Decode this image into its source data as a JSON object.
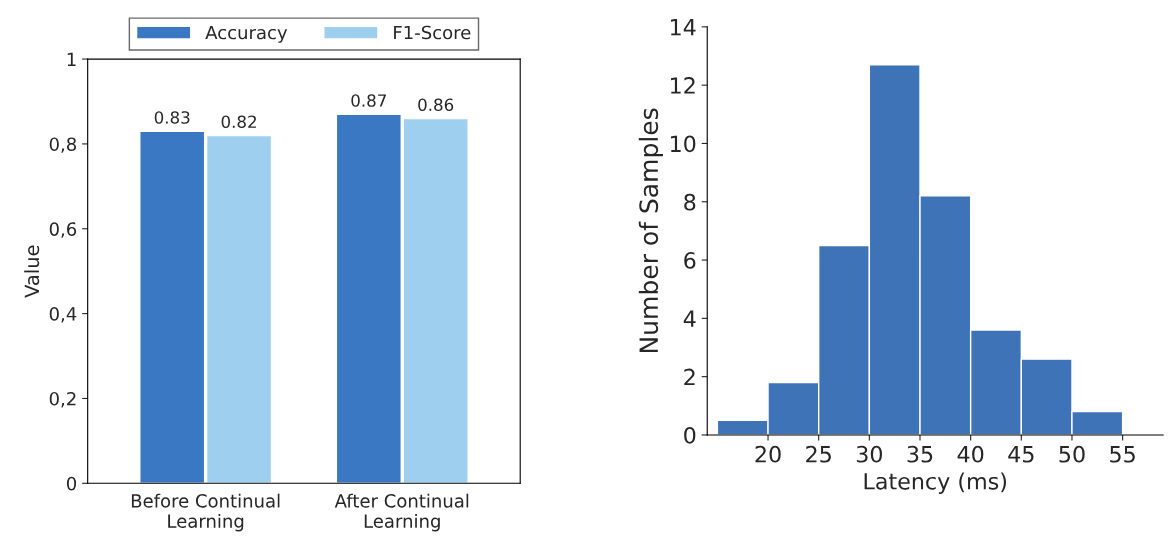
{
  "chart_data": [
    {
      "type": "bar",
      "ylabel": "Value",
      "categories": [
        "Before Continual Learning",
        "After Continual Learning"
      ],
      "series": [
        {
          "name": "Accuracy",
          "color": "#3b78c3",
          "values": [
            0.83,
            0.87
          ]
        },
        {
          "name": "F1-Score",
          "color": "#9fcfef",
          "values": [
            0.82,
            0.86
          ]
        }
      ],
      "ylim": [
        0,
        1
      ],
      "yticks": [
        0,
        {
          "value": 0.2,
          "label": "0,2"
        },
        {
          "value": 0.4,
          "label": "0,4"
        },
        {
          "value": 0.6,
          "label": "0,6"
        },
        {
          "value": 0.8,
          "label": "0,8"
        },
        1
      ],
      "data_labels": true,
      "legend": "top",
      "grid": false
    },
    {
      "type": "histogram",
      "xlabel": "Latency (ms)",
      "ylabel": "Number of Samples",
      "color": "#3f73b8",
      "bins": [
        15,
        20,
        25,
        30,
        35,
        40,
        45,
        50,
        55
      ],
      "values": [
        0.5,
        1.8,
        6.5,
        12.7,
        8.2,
        3.6,
        2.6,
        0.8
      ],
      "xlim": [
        14,
        59
      ],
      "xticks": [
        20,
        25,
        30,
        35,
        40,
        45,
        50,
        55
      ],
      "ylim": [
        0,
        14
      ],
      "yticks": [
        0,
        2,
        4,
        6,
        8,
        10,
        12,
        14
      ],
      "grid": false
    }
  ]
}
